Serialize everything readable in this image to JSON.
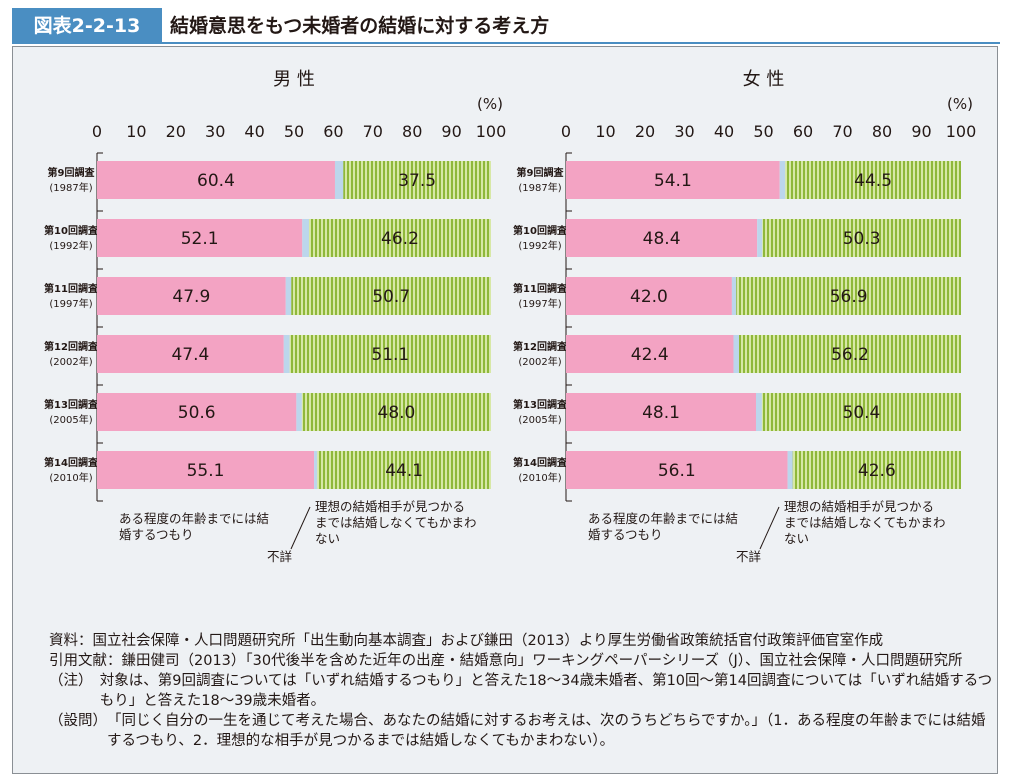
{
  "header": {
    "figure_label": "図表2-2-13",
    "title": "結婚意思をもつ未婚者の結婚に対する考え方"
  },
  "colors": {
    "label_bg": "#4a8ec2",
    "panel_bg": "#eef1f4",
    "intend_by_age": "#f3a3c3",
    "unknown": "#bcd6ec",
    "wait_for_ideal": "#8fb83a",
    "wait_stripe": "#d7e8a6"
  },
  "chart_data": [
    {
      "type": "bar",
      "stacked": true,
      "orientation": "horizontal",
      "title": "男 性",
      "unit_label": "(%)",
      "xlim": [
        0,
        100
      ],
      "xticks": [
        "0",
        "10",
        "20",
        "30",
        "40",
        "50",
        "60",
        "70",
        "80",
        "90",
        "100"
      ],
      "categories": [
        {
          "survey": "第9回調査",
          "year": "(1987年)"
        },
        {
          "survey": "第10回調査",
          "year": "(1992年)"
        },
        {
          "survey": "第11回調査",
          "year": "(1997年)"
        },
        {
          "survey": "第12回調査",
          "year": "(2002年)"
        },
        {
          "survey": "第13回調査",
          "year": "(2005年)"
        },
        {
          "survey": "第14回調査",
          "year": "(2010年)"
        }
      ],
      "series": [
        {
          "name": "ある程度の年齢までには結婚するつもり",
          "values": [
            60.4,
            52.1,
            47.9,
            47.4,
            50.6,
            55.1
          ],
          "labels": [
            "60.4",
            "52.1",
            "47.9",
            "47.4",
            "50.6",
            "55.1"
          ]
        },
        {
          "name": "不詳",
          "values": [
            2.1,
            1.7,
            1.4,
            1.5,
            1.4,
            0.8
          ]
        },
        {
          "name": "理想の結婚相手が見つかるまでは結婚しなくてもかまわない",
          "values": [
            37.5,
            46.2,
            50.7,
            51.1,
            48.0,
            44.1
          ],
          "labels": [
            "37.5",
            "46.2",
            "50.7",
            "51.1",
            "48.0",
            "44.1"
          ]
        }
      ]
    },
    {
      "type": "bar",
      "stacked": true,
      "orientation": "horizontal",
      "title": "女 性",
      "unit_label": "(%)",
      "xlim": [
        0,
        100
      ],
      "xticks": [
        "0",
        "10",
        "20",
        "30",
        "40",
        "50",
        "60",
        "70",
        "80",
        "90",
        "100"
      ],
      "categories": [
        {
          "survey": "第9回調査",
          "year": "(1987年)"
        },
        {
          "survey": "第10回調査",
          "year": "(1992年)"
        },
        {
          "survey": "第11回調査",
          "year": "(1997年)"
        },
        {
          "survey": "第12回調査",
          "year": "(2002年)"
        },
        {
          "survey": "第13回調査",
          "year": "(2005年)"
        },
        {
          "survey": "第14回調査",
          "year": "(2010年)"
        }
      ],
      "series": [
        {
          "name": "ある程度の年齢までには結婚するつもり",
          "values": [
            54.1,
            48.4,
            42.0,
            42.4,
            48.1,
            56.1
          ],
          "labels": [
            "54.1",
            "48.4",
            "42.0",
            "42.4",
            "48.1",
            "56.1"
          ]
        },
        {
          "name": "不詳",
          "values": [
            1.4,
            1.3,
            1.1,
            1.4,
            1.5,
            1.3
          ]
        },
        {
          "name": "理想の結婚相手が見つかるまでは結婚しなくてもかまわない",
          "values": [
            44.5,
            50.3,
            56.9,
            56.2,
            50.4,
            42.6
          ],
          "labels": [
            "44.5",
            "50.3",
            "56.9",
            "56.2",
            "50.4",
            "42.6"
          ]
        }
      ]
    }
  ],
  "annotations": {
    "left_label": [
      "ある程度の年齢までには結",
      "婚するつもり"
    ],
    "right_label": [
      "理想の結婚相手が見つかる",
      "までは結婚しなくてもかまわ",
      "ない"
    ],
    "unknown_label": "不詳"
  },
  "notes": [
    {
      "key": "資料：",
      "text": "国立社会保障・人口問題研究所「出生動向基本調査」および鎌田（2013）より厚生労働省政策統括官付政策評価官室作成"
    },
    {
      "key": "引用文献：",
      "text": "鎌田健司（2013）「30代後半を含めた近年の出産・結婚意向」ワーキングペーパーシリーズ（J）、国立社会保障・人口問題研究所"
    },
    {
      "key": "（注）　",
      "text": "対象は、第9回調査については「いずれ結婚するつもり」と答えた18〜34歳未婚者、第10回〜第14回調査については「いずれ結婚するつもり」と答えた18〜39歳未婚者。"
    },
    {
      "key": "（設問）",
      "text": "「同じく自分の一生を通じて考えた場合、あなたの結婚に対するお考えは、次のうちどちらですか。」（1．ある程度の年齢までには結婚するつもり、2．理想的な相手が見つかるまでは結婚しなくてもかまわない）。"
    }
  ]
}
